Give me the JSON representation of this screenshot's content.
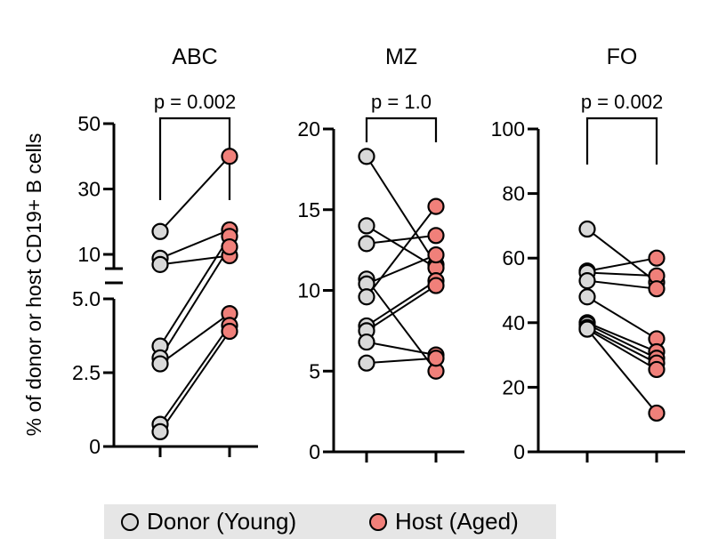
{
  "chart_data": {
    "type": "paired-scatter",
    "ylabel": "% of donor or host CD19+ B cells",
    "categories": [
      "Donor (Young)",
      "Host (Aged)"
    ],
    "colors": {
      "donor": "#d9d9d9",
      "host": "#f0807a"
    },
    "legend": {
      "placement": "bottom-center",
      "items": [
        {
          "name": "Donor (Young)",
          "color": "#d9d9d9"
        },
        {
          "name": "Host (Aged)",
          "color": "#f0807a"
        }
      ]
    },
    "panels": [
      {
        "title": "ABC",
        "p_label": "p = 0.002",
        "axis": "broken",
        "lower_range": [
          0,
          5.0
        ],
        "upper_range": [
          10,
          50
        ],
        "lower_ticks": [
          {
            "v": 0,
            "label": "0"
          },
          {
            "v": 2.5,
            "label": "2.5"
          },
          {
            "v": 5.0,
            "label": "5.0"
          }
        ],
        "upper_ticks": [
          {
            "v": 10,
            "label": "10"
          },
          {
            "v": 30,
            "label": "30"
          },
          {
            "v": 50,
            "label": "50"
          }
        ],
        "pairs": [
          [
            17,
            40
          ],
          [
            8.8,
            17.5
          ],
          [
            6.9,
            9.6
          ],
          [
            3.4,
            15.5
          ],
          [
            3.0,
            12.3
          ],
          [
            2.8,
            4.5
          ],
          [
            0.75,
            4.1
          ],
          [
            0.5,
            3.9
          ]
        ]
      },
      {
        "title": "MZ",
        "p_label": "p = 1.0",
        "axis": "linear",
        "range": [
          0,
          20
        ],
        "ticks": [
          {
            "v": 0,
            "label": "0"
          },
          {
            "v": 5,
            "label": "5"
          },
          {
            "v": 10,
            "label": "10"
          },
          {
            "v": 15,
            "label": "15"
          },
          {
            "v": 20,
            "label": "20"
          }
        ],
        "pairs": [
          [
            18.3,
            11.6
          ],
          [
            14.0,
            11.4
          ],
          [
            12.9,
            13.4
          ],
          [
            10.7,
            5.0
          ],
          [
            10.4,
            12.2
          ],
          [
            9.6,
            15.2
          ],
          [
            7.8,
            10.6
          ],
          [
            7.5,
            10.3
          ],
          [
            6.8,
            6.0
          ],
          [
            5.5,
            5.8
          ]
        ]
      },
      {
        "title": "FO",
        "p_label": "p = 0.002",
        "axis": "linear",
        "range": [
          0,
          100
        ],
        "ticks": [
          {
            "v": 0,
            "label": "0"
          },
          {
            "v": 20,
            "label": "20"
          },
          {
            "v": 40,
            "label": "40"
          },
          {
            "v": 60,
            "label": "60"
          },
          {
            "v": 80,
            "label": "80"
          },
          {
            "v": 100,
            "label": "100"
          }
        ],
        "pairs": [
          [
            69,
            52.5
          ],
          [
            56,
            60
          ],
          [
            55.5,
            54.5
          ],
          [
            53,
            50.5
          ],
          [
            48,
            35
          ],
          [
            40,
            31
          ],
          [
            39.5,
            29
          ],
          [
            38.5,
            27.5
          ],
          [
            38,
            25.5
          ],
          [
            38,
            12
          ]
        ]
      }
    ]
  }
}
